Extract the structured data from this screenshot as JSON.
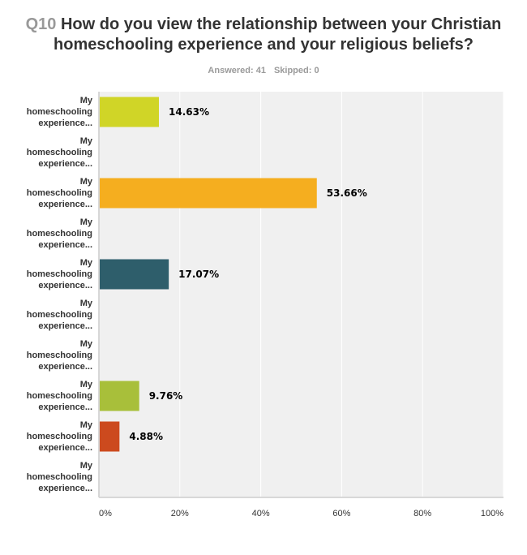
{
  "header": {
    "question_number": "Q10",
    "question_text": "How do you view the relationship between your Christian homeschooling experience and your religious beliefs?",
    "answered": "Answered: 41",
    "skipped": "Skipped: 0"
  },
  "chart_data": {
    "type": "bar",
    "orientation": "horizontal",
    "title": "Q10 How do you view the relationship between your Christian homeschooling experience and your religious beliefs?",
    "categories": [
      "My homeschooling experience...",
      "My homeschooling experience...",
      "My homeschooling experience...",
      "My homeschooling experience...",
      "My homeschooling experience...",
      "My homeschooling experience...",
      "My homeschooling experience...",
      "My homeschooling experience...",
      "My homeschooling experience...",
      "My homeschooling experience..."
    ],
    "values": [
      14.63,
      0,
      53.66,
      0,
      17.07,
      0,
      0,
      9.76,
      4.88,
      0
    ],
    "data_labels": [
      "14.63%",
      "",
      "53.66%",
      "",
      "17.07%",
      "",
      "",
      "9.76%",
      "4.88%",
      ""
    ],
    "colors": [
      "#d0d527",
      "#d0d527",
      "#f5ae1f",
      "#f5ae1f",
      "#2e5e6b",
      "#2e5e6b",
      "#2e5e6b",
      "#a8bf3a",
      "#cc4a1e",
      "#cc4a1e"
    ],
    "xlim": [
      0,
      100
    ],
    "xticks": [
      "0%",
      "20%",
      "40%",
      "60%",
      "80%",
      "100%"
    ],
    "xlabel": "",
    "ylabel": "",
    "grid": true,
    "plot_background": "#f0f0f0",
    "legend": "none"
  }
}
